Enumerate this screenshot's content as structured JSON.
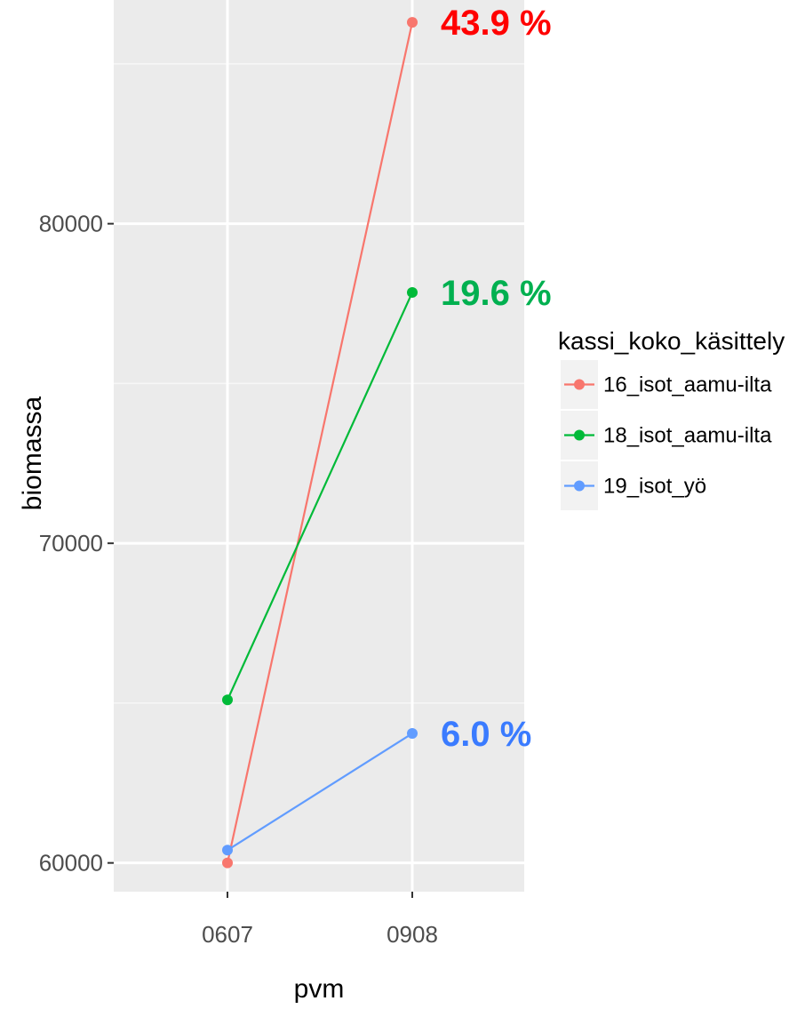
{
  "chart_data": {
    "type": "line",
    "xlabel": "pvm",
    "ylabel": "biomassa",
    "categories": [
      "0607",
      "0908"
    ],
    "ylim": [
      59100,
      87000
    ],
    "yticks": [
      60000,
      70000,
      80000
    ],
    "grid": true,
    "legend": {
      "title": "kassi_koko_käsittely",
      "position": "right"
    },
    "series": [
      {
        "name": "16_isot_aamu-ilta",
        "values": [
          60000,
          86300
        ],
        "color": "#f8766d"
      },
      {
        "name": "18_isot_aamu-ilta",
        "values": [
          65100,
          77850
        ],
        "color": "#00ba38"
      },
      {
        "name": "19_isot_yö",
        "values": [
          60400,
          64050
        ],
        "color": "#619cff"
      }
    ],
    "annotations": [
      {
        "text": "43.9 %",
        "category": "0908",
        "y": 86300,
        "color": "#ff0000"
      },
      {
        "text": "19.6 %",
        "category": "0908",
        "y": 77850,
        "color": "#00b050"
      },
      {
        "text": "6.0 %",
        "category": "0908",
        "y": 64050,
        "color": "#3a7bff"
      }
    ]
  }
}
